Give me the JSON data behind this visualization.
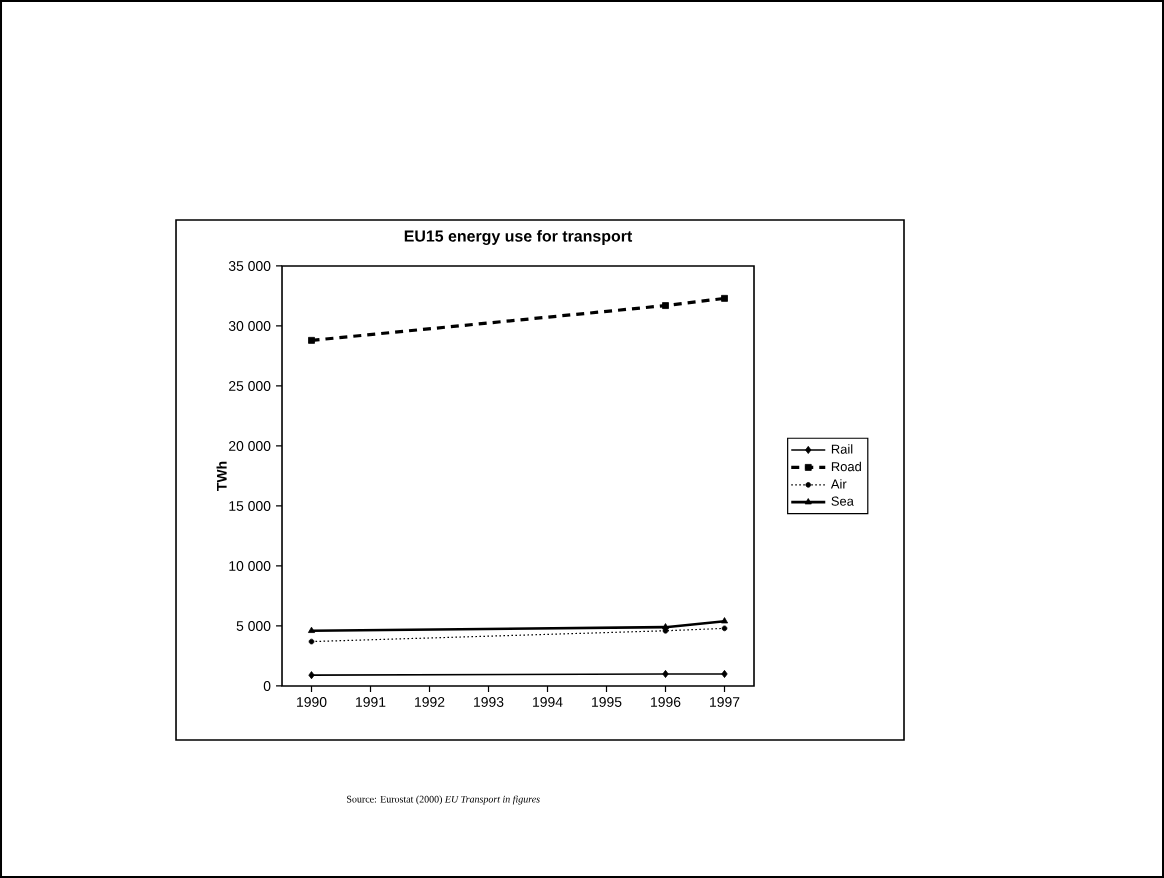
{
  "chart_data": {
    "type": "line",
    "title": "EU15 energy use for transport",
    "ylabel": "TWh",
    "xlim": [
      1989.5,
      1997.5
    ],
    "xticks": [
      1990,
      1991,
      1992,
      1993,
      1994,
      1995,
      1996,
      1997
    ],
    "ylim": [
      0,
      35000
    ],
    "yticks": [
      {
        "value": 0,
        "label": "0"
      },
      {
        "value": 5000,
        "label": "5 000"
      },
      {
        "value": 10000,
        "label": "10 000"
      },
      {
        "value": 15000,
        "label": "15 000"
      },
      {
        "value": 20000,
        "label": "20 000"
      },
      {
        "value": 25000,
        "label": "25 000"
      },
      {
        "value": 30000,
        "label": "30 000"
      },
      {
        "value": 35000,
        "label": "35 000"
      }
    ],
    "grid": false,
    "legend": "right",
    "series": [
      {
        "name": "Rail",
        "color": "#000000",
        "x": [
          1990,
          1996,
          1997
        ],
        "values": [
          900,
          1000,
          1000
        ],
        "marker": "diamond",
        "line_style": "solid"
      },
      {
        "name": "Road",
        "color": "#000000",
        "x": [
          1990,
          1996,
          1997
        ],
        "values": [
          28800,
          31700,
          32300
        ],
        "marker": "square",
        "line_style": "dashed"
      },
      {
        "name": "Air",
        "color": "#000000",
        "x": [
          1990,
          1996,
          1997
        ],
        "values": [
          3700,
          4600,
          4800
        ],
        "marker": "circle",
        "line_style": "dotted"
      },
      {
        "name": "Sea",
        "color": "#000000",
        "x": [
          1990,
          1996,
          1997
        ],
        "values": [
          4600,
          4900,
          5400
        ],
        "marker": "triangle",
        "line_style": "solid"
      }
    ],
    "annotations": [
      "Source: Eurostat (2000) *EU Transport in figures*"
    ]
  }
}
